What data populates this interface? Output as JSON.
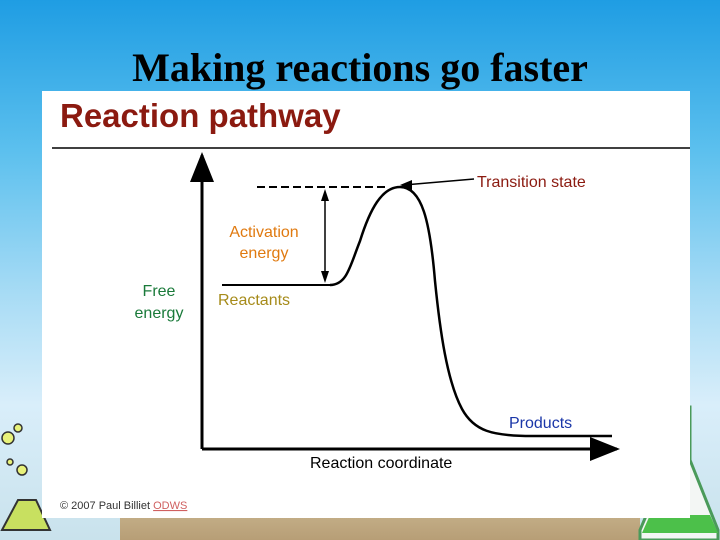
{
  "slide": {
    "title": "Making reactions go faster",
    "footer_fragment": "ODWS"
  },
  "figure": {
    "heading": "Reaction pathway",
    "ylabel_line1": "Free",
    "ylabel_line2": "energy",
    "xlabel": "Reaction coordinate",
    "transition_label": "Transition state",
    "activation_line1": "Activation",
    "activation_line2": "energy",
    "reactants_label": "Reactants",
    "products_label": "Products",
    "credit_prefix": "© 2007 Paul Billiet",
    "credit_link": "ODWS"
  },
  "colors": {
    "heading": "#8b1a10",
    "ylabel": "#1a7a3a",
    "activation": "#e07a10",
    "reactants": "#a68b1a",
    "products": "#1a36a8",
    "transition": "#8b1a10",
    "credit_link": "#d06060"
  }
}
